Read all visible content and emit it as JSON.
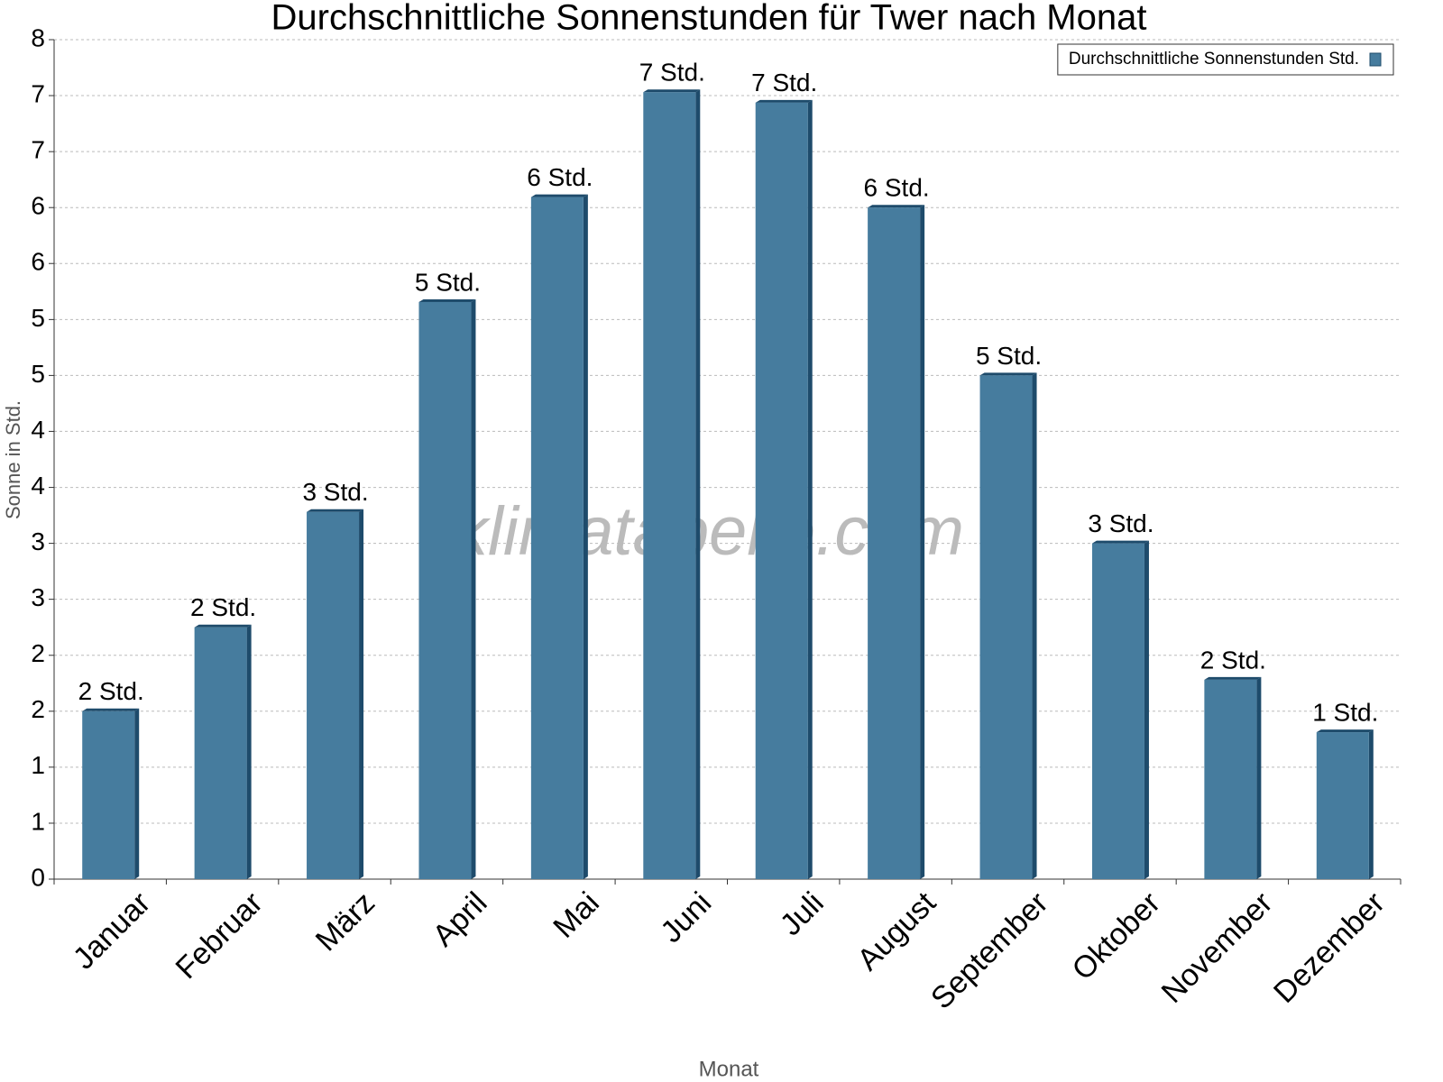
{
  "chart_data": {
    "type": "bar",
    "title": "Durchschnittliche Sonnenstunden für Twer nach Monat",
    "x_label": "Monat",
    "y_label": "Sonne in Std.",
    "watermark": "klimatabelle.com",
    "categories": [
      "Januar",
      "Februar",
      "März",
      "April",
      "Mai",
      "Juni",
      "Juli",
      "August",
      "September",
      "Oktober",
      "November",
      "Dezember"
    ],
    "series": [
      {
        "name": "Durchschnittliche Sonnenstunden Std.",
        "color": "#467c9e",
        "values": [
          1.6,
          2.4,
          3.5,
          5.5,
          6.5,
          7.5,
          7.4,
          6.4,
          4.8,
          3.2,
          1.9,
          1.4
        ],
        "value_labels": [
          "2 Std.",
          "2 Std.",
          "3 Std.",
          "5 Std.",
          "6 Std.",
          "7 Std.",
          "7 Std.",
          "6 Std.",
          "5 Std.",
          "3 Std.",
          "2 Std.",
          "1 Std."
        ]
      }
    ],
    "ylim": [
      0,
      8
    ],
    "yticks": [
      0,
      {
        "value": 0.533,
        "label": "1"
      },
      {
        "value": 1.067,
        "label": "1"
      },
      {
        "value": 1.6,
        "label": "2"
      },
      {
        "value": 2.133,
        "label": "2"
      },
      {
        "value": 2.667,
        "label": "3"
      },
      {
        "value": 3.2,
        "label": "3"
      },
      {
        "value": 3.733,
        "label": "4"
      },
      {
        "value": 4.267,
        "label": "4"
      },
      {
        "value": 4.8,
        "label": "5"
      },
      {
        "value": 5.333,
        "label": "5"
      },
      {
        "value": 5.867,
        "label": "6"
      },
      {
        "value": 6.4,
        "label": "6"
      },
      {
        "value": 6.933,
        "label": "7"
      },
      {
        "value": 7.467,
        "label": "7"
      },
      8
    ],
    "grid": true,
    "legend": "top-right"
  }
}
